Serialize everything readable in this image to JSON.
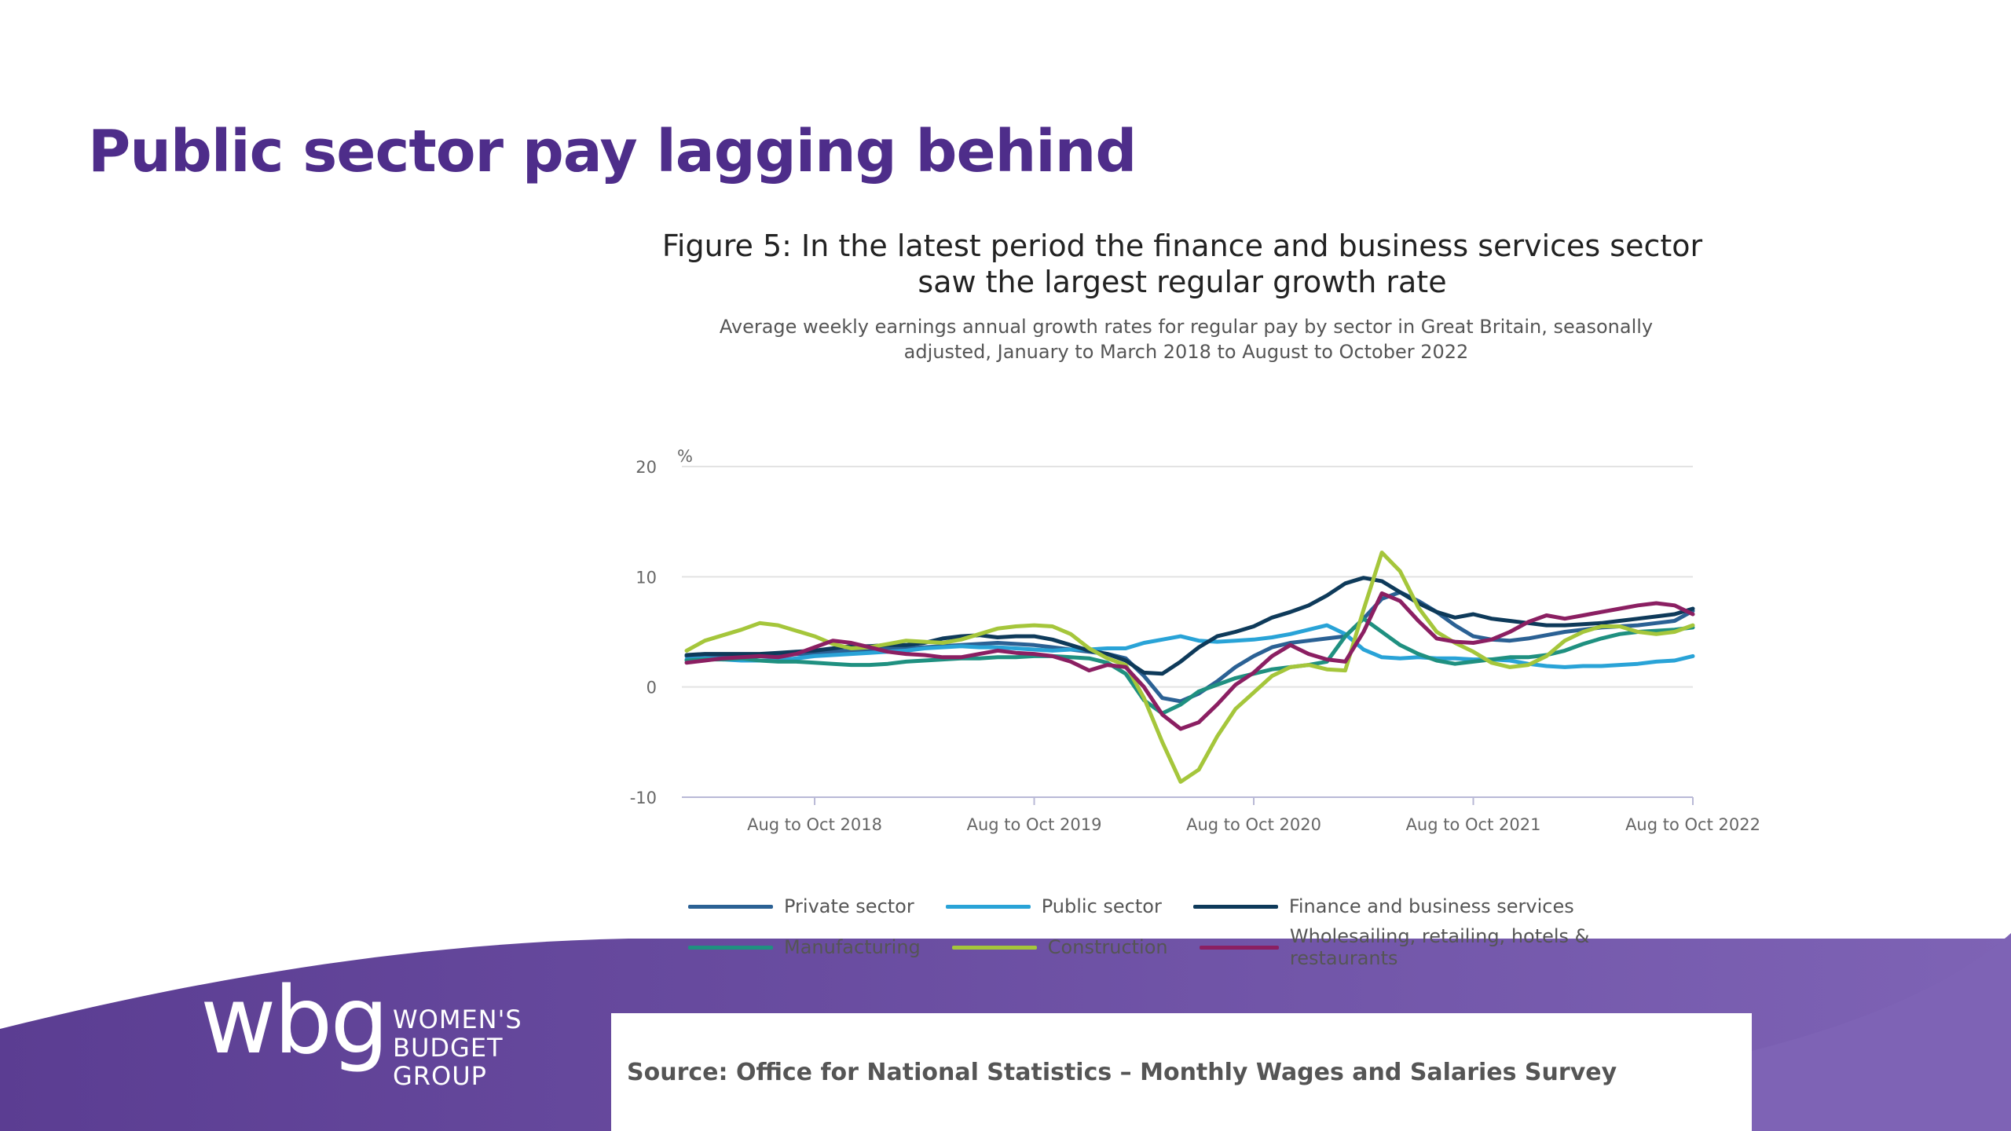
{
  "slide": {
    "title": "Public sector pay lagging behind",
    "source": "Source: Office for National Statistics – Monthly Wages and Salaries Survey"
  },
  "logo": {
    "mark": "wbg",
    "line1": "WOMEN'S",
    "line2": "BUDGET",
    "line3": "GROUP"
  },
  "colors": {
    "title": "#4e2d8a",
    "band_left": "#5b3d92",
    "band_right": "#7e63b5"
  },
  "chart_data": {
    "type": "line",
    "title": "Figure 5: In the latest period the finance and business services sector saw the largest regular growth rate",
    "subtitle": "Average weekly earnings annual growth rates for regular pay by sector in Great Britain, seasonally adjusted, January to March 2018 to August to October 2022",
    "ylabel": "%",
    "ylim": [
      -10,
      20
    ],
    "yticks": [
      -10,
      0,
      10,
      20
    ],
    "x": [
      "Jan to Mar 2018",
      "Feb to Apr 2018",
      "Mar to May 2018",
      "Apr to Jun 2018",
      "May to Jul 2018",
      "Jun to Aug 2018",
      "Jul to Sep 2018",
      "Aug to Oct 2018",
      "Sep to Nov 2018",
      "Oct to Dec 2018",
      "Nov to Jan 2019",
      "Dec to Feb 2019",
      "Jan to Mar 2019",
      "Feb to Apr 2019",
      "Mar to May 2019",
      "Apr to Jun 2019",
      "May to Jul 2019",
      "Jun to Aug 2019",
      "Jul to Sep 2019",
      "Aug to Oct 2019",
      "Sep to Nov 2019",
      "Oct to Dec 2019",
      "Nov to Jan 2020",
      "Dec to Feb 2020",
      "Jan to Mar 2020",
      "Feb to Apr 2020",
      "Mar to May 2020",
      "Apr to Jun 2020",
      "May to Jul 2020",
      "Jun to Aug 2020",
      "Jul to Sep 2020",
      "Aug to Oct 2020",
      "Sep to Nov 2020",
      "Oct to Dec 2020",
      "Nov to Jan 2021",
      "Dec to Feb 2021",
      "Jan to Mar 2021",
      "Feb to Apr 2021",
      "Mar to May 2021",
      "Apr to Jun 2021",
      "May to Jul 2021",
      "Jun to Aug 2021",
      "Jul to Sep 2021",
      "Aug to Oct 2021",
      "Sep to Nov 2021",
      "Oct to Dec 2021",
      "Nov to Jan 2022",
      "Dec to Feb 2022",
      "Jan to Mar 2022",
      "Feb to Apr 2022",
      "Mar to May 2022",
      "Apr to Jun 2022",
      "May to Jul 2022",
      "Jun to Aug 2022",
      "Jul to Sep 2022",
      "Aug to Oct 2022"
    ],
    "xticks": [
      "Aug to Oct 2018",
      "Aug to Oct 2019",
      "Aug to Oct 2020",
      "Aug to Oct 2021",
      "Aug to Oct 2022"
    ],
    "grid": true,
    "legend_position": "bottom",
    "series": [
      {
        "name": "Private sector",
        "color": "#2b6194",
        "values": [
          2.8,
          2.9,
          2.9,
          2.8,
          2.8,
          2.9,
          3.0,
          3.0,
          3.2,
          3.3,
          3.4,
          3.5,
          3.5,
          3.6,
          3.7,
          3.8,
          3.9,
          4.0,
          3.9,
          3.8,
          3.6,
          3.4,
          3.2,
          3.0,
          2.6,
          1.0,
          -1.0,
          -1.3,
          -0.6,
          0.5,
          1.8,
          2.8,
          3.6,
          4.0,
          4.2,
          4.4,
          4.6,
          6.2,
          8.0,
          8.6,
          7.8,
          6.8,
          5.6,
          4.6,
          4.3,
          4.2,
          4.4,
          4.7,
          5.0,
          5.2,
          5.4,
          5.5,
          5.6,
          5.8,
          6.0,
          6.9
        ]
      },
      {
        "name": "Public sector",
        "color": "#29a3d7",
        "values": [
          2.5,
          2.6,
          2.5,
          2.4,
          2.4,
          2.4,
          2.6,
          2.8,
          2.9,
          3.0,
          3.1,
          3.2,
          3.3,
          3.5,
          3.6,
          3.7,
          3.6,
          3.6,
          3.5,
          3.4,
          3.3,
          3.4,
          3.4,
          3.5,
          3.5,
          4.0,
          4.3,
          4.6,
          4.2,
          4.1,
          4.2,
          4.3,
          4.5,
          4.8,
          5.2,
          5.6,
          4.8,
          3.4,
          2.7,
          2.6,
          2.7,
          2.6,
          2.6,
          2.5,
          2.5,
          2.4,
          2.1,
          1.9,
          1.8,
          1.9,
          1.9,
          2.0,
          2.1,
          2.3,
          2.4,
          2.8
        ]
      },
      {
        "name": "Finance and business services",
        "color": "#0e3a5a",
        "values": [
          2.9,
          3.0,
          3.0,
          3.0,
          3.0,
          3.1,
          3.2,
          3.3,
          3.5,
          3.7,
          3.7,
          3.8,
          3.8,
          4.0,
          4.4,
          4.6,
          4.7,
          4.5,
          4.6,
          4.6,
          4.3,
          3.8,
          3.3,
          3.0,
          2.4,
          1.3,
          1.2,
          2.3,
          3.6,
          4.6,
          5.0,
          5.5,
          6.3,
          6.8,
          7.4,
          8.3,
          9.4,
          9.9,
          9.6,
          8.6,
          7.6,
          6.8,
          6.3,
          6.6,
          6.2,
          6.0,
          5.8,
          5.6,
          5.6,
          5.7,
          5.8,
          6.0,
          6.2,
          6.4,
          6.6,
          7.1
        ]
      },
      {
        "name": "Manufacturing",
        "color": "#1f9080",
        "values": [
          2.4,
          2.5,
          2.5,
          2.6,
          2.4,
          2.3,
          2.3,
          2.2,
          2.1,
          2.0,
          2.0,
          2.1,
          2.3,
          2.4,
          2.5,
          2.6,
          2.6,
          2.7,
          2.7,
          2.8,
          2.8,
          2.7,
          2.6,
          2.2,
          1.2,
          -1.2,
          -2.4,
          -1.6,
          -0.4,
          0.2,
          0.8,
          1.2,
          1.6,
          1.8,
          2.0,
          2.3,
          4.6,
          6.2,
          5.0,
          3.8,
          3.0,
          2.4,
          2.1,
          2.3,
          2.5,
          2.7,
          2.7,
          2.9,
          3.3,
          3.9,
          4.4,
          4.8,
          5.0,
          5.1,
          5.2,
          5.4
        ]
      },
      {
        "name": "Construction",
        "color": "#a5c63b",
        "values": [
          3.3,
          4.2,
          4.7,
          5.2,
          5.8,
          5.6,
          5.1,
          4.6,
          3.9,
          3.5,
          3.6,
          3.9,
          4.2,
          4.1,
          4.0,
          4.3,
          4.8,
          5.3,
          5.5,
          5.6,
          5.5,
          4.8,
          3.5,
          2.6,
          2.0,
          -1.0,
          -5.0,
          -8.6,
          -7.5,
          -4.5,
          -2.0,
          -0.5,
          1.0,
          1.8,
          2.0,
          1.6,
          1.5,
          7.0,
          12.2,
          10.5,
          7.2,
          5.0,
          4.0,
          3.2,
          2.2,
          1.8,
          2.0,
          2.8,
          4.2,
          5.0,
          5.5,
          5.5,
          5.0,
          4.8,
          5.0,
          5.6
        ]
      },
      {
        "name": "Wholesailing, retailing, hotels & restaurants",
        "color": "#8b1f62",
        "values": [
          2.2,
          2.4,
          2.6,
          2.7,
          2.8,
          2.7,
          3.0,
          3.6,
          4.2,
          4.0,
          3.6,
          3.2,
          3.0,
          2.9,
          2.7,
          2.7,
          3.0,
          3.3,
          3.1,
          3.0,
          2.8,
          2.3,
          1.5,
          2.0,
          1.8,
          0.0,
          -2.5,
          -3.8,
          -3.2,
          -1.6,
          0.2,
          1.3,
          2.8,
          3.8,
          3.0,
          2.5,
          2.3,
          5.0,
          8.5,
          7.8,
          6.0,
          4.4,
          4.1,
          4.0,
          4.3,
          5.0,
          5.9,
          6.5,
          6.2,
          6.5,
          6.8,
          7.1,
          7.4,
          7.6,
          7.4,
          6.6
        ]
      }
    ]
  }
}
